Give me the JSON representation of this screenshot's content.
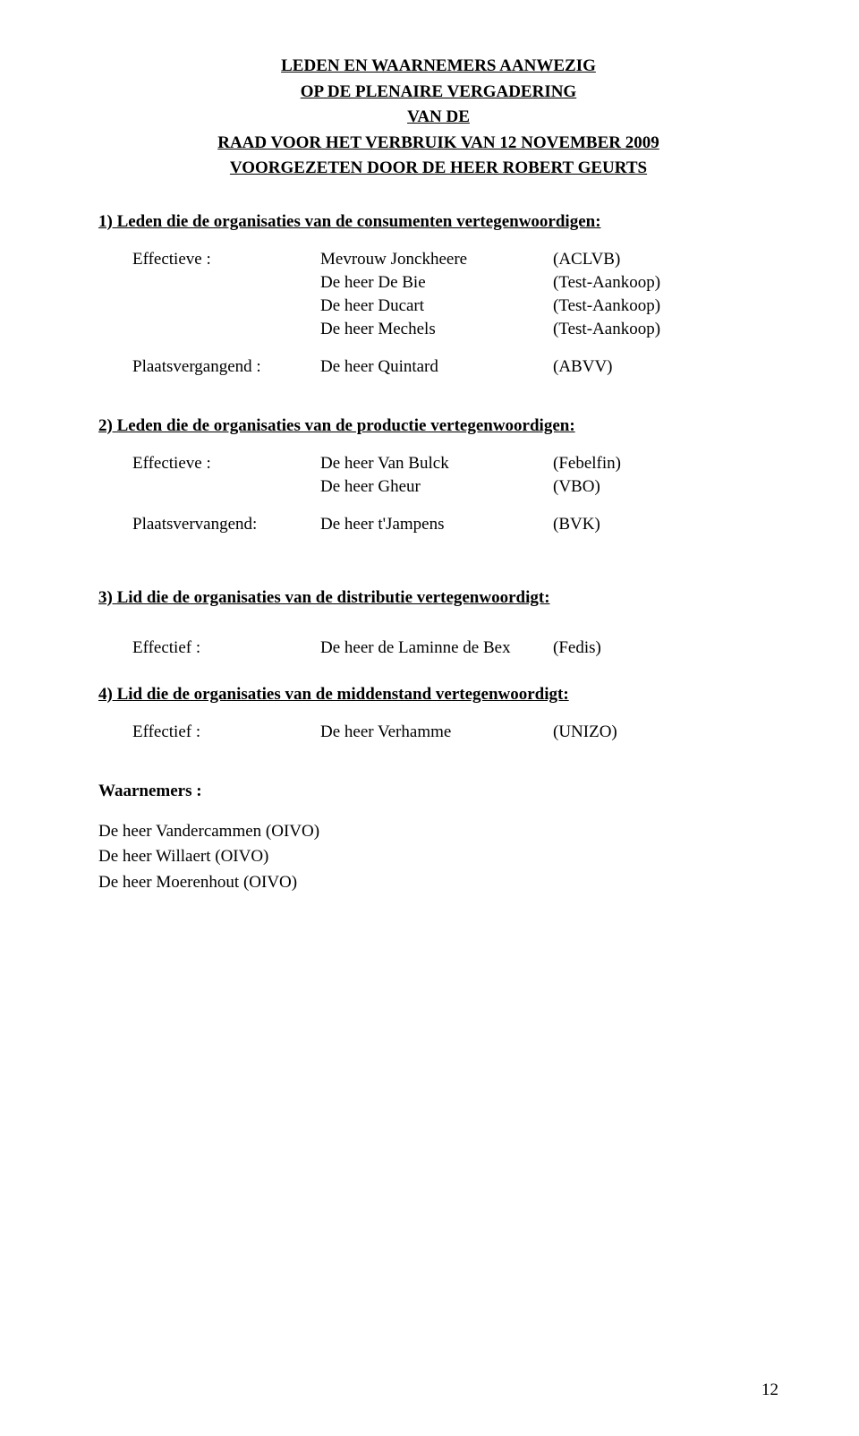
{
  "title": {
    "line1": "LEDEN EN WAARNEMERS AANWEZIG",
    "line2": "OP DE PLENAIRE VERGADERING",
    "line3": "VAN  DE",
    "line4": "RAAD VOOR HET VERBRUIK VAN 12 NOVEMBER  2009",
    "line5": "VOORGEZETEN DOOR  DE HEER ROBERT GEURTS"
  },
  "section1": {
    "heading": "1)  Leden die de organisaties van de consumenten vertegenwoordigen:",
    "effectieve_label": "Effectieve :",
    "plaats_label": "Plaatsvergangend :",
    "rows_eff": [
      {
        "name": "Mevrouw Jonckheere",
        "org": "(ACLVB)"
      },
      {
        "name": "De heer De Bie",
        "org": "(Test-Aankoop)"
      },
      {
        "name": "De heer Ducart",
        "org": "(Test-Aankoop)"
      },
      {
        "name": "De heer Mechels",
        "org": "(Test-Aankoop)"
      }
    ],
    "rows_pl": [
      {
        "name": "De heer Quintard",
        "org": "(ABVV)"
      }
    ]
  },
  "section2": {
    "heading": "2)  Leden die de organisaties van de productie vertegenwoordigen:",
    "effectieve_label": "Effectieve :",
    "plaats_label": "Plaatsvervangend:",
    "rows_eff": [
      {
        "name": "De heer Van Bulck",
        "org": "(Febelfin)"
      },
      {
        "name": "De heer Gheur",
        "org": "(VBO)"
      }
    ],
    "rows_pl": [
      {
        "name": "De heer t'Jampens",
        "org": "(BVK)"
      }
    ]
  },
  "section3": {
    "heading": "3)  Lid  die de organisaties van de distributie vertegenwoordigt:",
    "effectief_label": "Effectief :",
    "rows_eff": [
      {
        "name": "De heer de Laminne de Bex",
        "org": "(Fedis)"
      }
    ]
  },
  "section4": {
    "heading": "4)  Lid  die de organisaties van de middenstand vertegenwoordigt:",
    "effectief_label": "Effectief :",
    "rows_eff": [
      {
        "name": "De heer Verhamme",
        "org": "(UNIZO)"
      }
    ]
  },
  "waarnemers": {
    "label": "Waarnemers :",
    "lines": [
      "De heer Vandercammen (OIVO)",
      "De heer Willaert (OIVO)",
      "De heer Moerenhout (OIVO)"
    ]
  },
  "page_number": "12"
}
